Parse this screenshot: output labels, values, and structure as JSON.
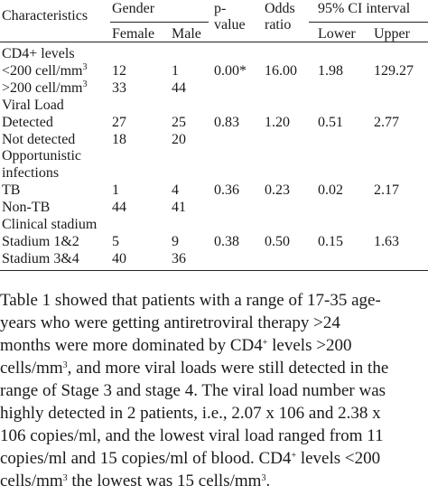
{
  "table": {
    "headers": {
      "characteristics": "Characteristics",
      "gender": "Gender",
      "female": "Female",
      "male": "Male",
      "pvalue_1": "p-",
      "pvalue_2": "value",
      "odds_1": "Odds",
      "odds_2": "ratio",
      "ci": "95% CI interval",
      "lower": "Lower",
      "upper": "Upper"
    },
    "rows": [
      {
        "label": "CD4+ levels",
        "female": "",
        "male": "",
        "p": "",
        "or": "",
        "lower": "",
        "upper": ""
      },
      {
        "label": "<200 cell/mm",
        "sup": "3",
        "female": "12",
        "male": "1",
        "p": "0.00*",
        "or": "16.00",
        "lower": "1.98",
        "upper": "129.27"
      },
      {
        "label": ">200 cell/mm",
        "sup": "3",
        "female": "33",
        "male": "44",
        "p": "",
        "or": "",
        "lower": "",
        "upper": ""
      },
      {
        "label": "Viral Load",
        "female": "",
        "male": "",
        "p": "",
        "or": "",
        "lower": "",
        "upper": ""
      },
      {
        "label": "Detected",
        "female": "27",
        "male": "25",
        "p": "0.83",
        "or": "1.20",
        "lower": "0.51",
        "upper": "2.77"
      },
      {
        "label": "Not detected",
        "female": "18",
        "male": "20",
        "p": "",
        "or": "",
        "lower": "",
        "upper": ""
      },
      {
        "label": "Opportunistic",
        "female": "",
        "male": "",
        "p": "",
        "or": "",
        "lower": "",
        "upper": ""
      },
      {
        "label": "infections",
        "female": "",
        "male": "",
        "p": "",
        "or": "",
        "lower": "",
        "upper": ""
      },
      {
        "label": "TB",
        "female": "1",
        "male": "4",
        "p": "0.36",
        "or": "0.23",
        "lower": "0.02",
        "upper": "2.17"
      },
      {
        "label": "Non-TB",
        "female": "44",
        "male": "41",
        "p": "",
        "or": "",
        "lower": "",
        "upper": ""
      },
      {
        "label": "Clinical stadium",
        "female": "",
        "male": "",
        "p": "",
        "or": "",
        "lower": "",
        "upper": ""
      },
      {
        "label": "Stadium 1&2",
        "female": "5",
        "male": "9",
        "p": "0.38",
        "or": "0.50",
        "lower": "0.15",
        "upper": "1.63"
      },
      {
        "label": "Stadium 3&4",
        "female": "40",
        "male": "36",
        "p": "",
        "or": "",
        "lower": "",
        "upper": ""
      }
    ]
  },
  "paragraph": {
    "lines": [
      {
        "text": "Table 1 showed that patients with a range of 17-35 age-"
      },
      {
        "text": "years who were getting antiretroviral therapy >24"
      },
      {
        "text": "months were more dominated by CD4",
        "sup": "+",
        "tail": " levels >200"
      },
      {
        "text": "cells/mm",
        "sup": "3",
        "tail": ", and more viral loads were still detected in the"
      },
      {
        "text": "range of Stage 3 and stage 4. The viral load number was"
      },
      {
        "text": "highly detected in 2 patients, i.e., 2.07 x 106 and 2.38 x"
      },
      {
        "text": "106 copies/ml, and the lowest viral load ranged from 11"
      },
      {
        "text": "copies/ml and 15 copies/ml of blood. CD4",
        "sup": "+",
        "tail": " levels <200"
      },
      {
        "text": "cells/mm",
        "sup": "3",
        "tail": " the lowest was 15 cells/mm",
        "sup2": "3",
        "tail2": "."
      }
    ]
  }
}
